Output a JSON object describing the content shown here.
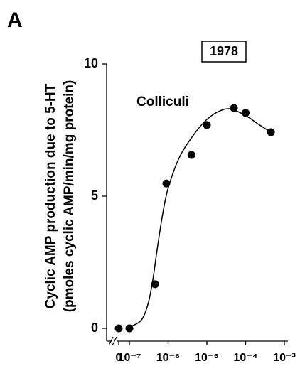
{
  "chart_data": {
    "type": "scatter",
    "panel_label": "A",
    "annotation_box": "1978",
    "annotation": "Colliculi",
    "ylabel": [
      "Cyclic AMP production due to 5-HT",
      "(pmoles cyclic AMP/min/mg protein)"
    ],
    "xscale": "log",
    "xlim": [
      1e-07,
      0.001
    ],
    "xticks": [
      0,
      {
        "value": 1e-07,
        "label": "10⁻⁷"
      },
      {
        "value": 1e-06,
        "label": "10⁻⁶"
      },
      {
        "value": 1e-05,
        "label": "10⁻⁵"
      },
      {
        "value": 0.0001,
        "label": "10⁻⁴"
      },
      {
        "value": 0.001,
        "label": "10⁻³"
      }
    ],
    "ylim": [
      0,
      10
    ],
    "yticks": [
      0,
      5,
      10
    ],
    "series": [
      {
        "color": "#000000",
        "x": [
          0,
          1e-07,
          4.6e-07,
          9e-07,
          4e-06,
          1e-05,
          5e-05,
          0.0001,
          0.00045
        ],
        "values": [
          0,
          0,
          1.67,
          5.48,
          6.56,
          7.69,
          8.33,
          8.15,
          7.42
        ]
      }
    ],
    "fit": {
      "color": "#000000",
      "x": [
        1e-07,
        2e-07,
        3e-07,
        4e-07,
        5e-07,
        7e-07,
        1e-06,
        2e-06,
        5e-06,
        1e-05,
        2e-05,
        4e-05,
        0.0001,
        0.0002,
        0.00045
      ],
      "values": [
        0.05,
        0.3,
        0.9,
        1.8,
        2.8,
        4.2,
        5.3,
        6.5,
        7.4,
        7.9,
        8.2,
        8.3,
        8.05,
        7.75,
        7.42
      ]
    }
  }
}
